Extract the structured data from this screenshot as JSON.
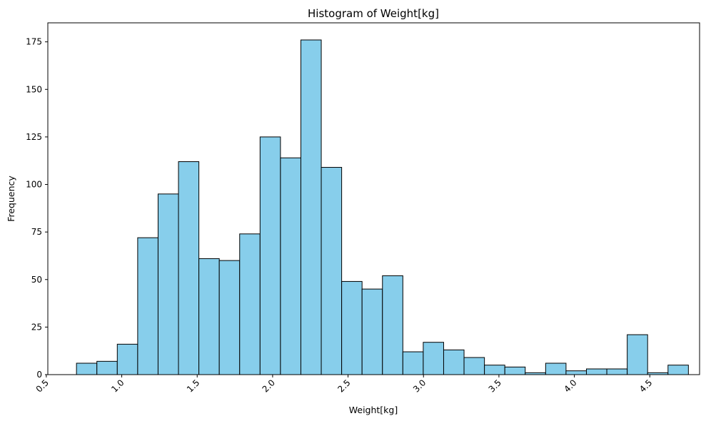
{
  "chart_data": {
    "type": "bar",
    "title": "Histogram of Weight[kg]",
    "xlabel": "Weight[kg]",
    "ylabel": "Frequency",
    "xlim": [
      0.51,
      4.83
    ],
    "ylim": [
      0,
      185
    ],
    "xticks": [
      0.5,
      1.0,
      1.5,
      2.0,
      2.5,
      3.0,
      3.5,
      4.0,
      4.5
    ],
    "xtick_labels": [
      "0.5",
      "1.0",
      "1.5",
      "2.0",
      "2.5",
      "3.0",
      "3.5",
      "4.0",
      "4.5"
    ],
    "yticks": [
      0,
      25,
      50,
      75,
      100,
      125,
      150,
      175
    ],
    "ytick_labels": [
      "0",
      "25",
      "50",
      "75",
      "100",
      "125",
      "150",
      "175"
    ],
    "bin_start": 0.7,
    "bin_width": 0.1352,
    "values": [
      6,
      7,
      16,
      72,
      95,
      112,
      61,
      60,
      74,
      125,
      114,
      176,
      109,
      49,
      45,
      52,
      12,
      17,
      13,
      9,
      5,
      4,
      1,
      6,
      2,
      3,
      3,
      21,
      1,
      5
    ],
    "grid": false,
    "legend": "none",
    "colors": {
      "bar_fill": "#87ceeb",
      "bar_edge": "#000000"
    }
  }
}
